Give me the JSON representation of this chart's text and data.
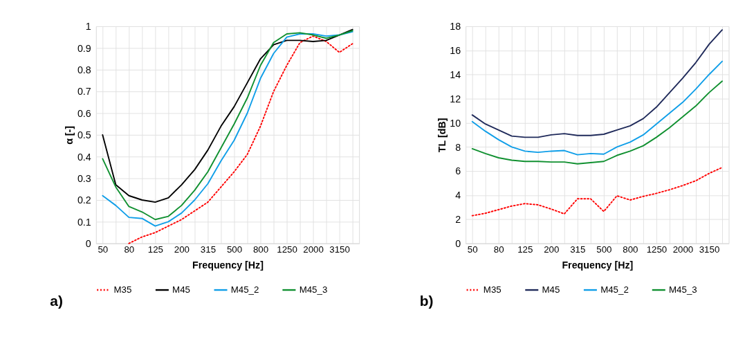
{
  "chart_data": [
    {
      "type": "line",
      "xlabel": "Frequency [Hz]",
      "ylabel": "α [-]",
      "categories": [
        "50",
        null,
        "80",
        null,
        "125",
        null,
        "200",
        null,
        "315",
        null,
        "500",
        null,
        "800",
        null,
        "1250",
        null,
        "2000",
        null,
        "3150",
        null
      ],
      "ylim": [
        0,
        1
      ],
      "yticks": [
        0,
        0.1,
        0.2,
        0.3,
        0.4,
        0.5,
        0.6,
        0.7,
        0.8,
        0.9,
        1
      ],
      "grid": true,
      "legend": "bottom",
      "annotations": [
        "a)"
      ],
      "series": [
        {
          "name": "M35",
          "color": "#ff0000",
          "line_style": "dotted",
          "values": [
            null,
            null,
            0,
            0.03,
            0.05,
            0.08,
            0.11,
            0.15,
            0.19,
            0.26,
            0.33,
            0.41,
            0.54,
            0.7,
            0.82,
            0.925,
            0.955,
            0.93,
            0.88,
            0.92
          ]
        },
        {
          "name": "M45",
          "color": "#000000",
          "line_style": "solid",
          "values": [
            0.5,
            0.27,
            0.22,
            0.2,
            0.19,
            0.21,
            0.27,
            0.34,
            0.43,
            0.54,
            0.63,
            0.74,
            0.85,
            0.915,
            0.935,
            0.935,
            0.93,
            0.935,
            0.96,
            0.985
          ]
        },
        {
          "name": "M45_2",
          "color": "#0f9ee8",
          "line_style": "solid",
          "values": [
            0.22,
            0.175,
            0.12,
            0.115,
            0.08,
            0.1,
            0.14,
            0.2,
            0.275,
            0.38,
            0.475,
            0.6,
            0.76,
            0.875,
            0.95,
            0.965,
            0.965,
            0.955,
            0.96,
            0.975
          ]
        },
        {
          "name": "M45_3",
          "color": "#109030",
          "line_style": "solid",
          "values": [
            0.39,
            0.26,
            0.17,
            0.145,
            0.11,
            0.125,
            0.175,
            0.245,
            0.33,
            0.44,
            0.55,
            0.67,
            0.82,
            0.925,
            0.965,
            0.97,
            0.96,
            0.945,
            0.96,
            0.98
          ]
        }
      ]
    },
    {
      "type": "line",
      "xlabel": "Frequency [Hz]",
      "ylabel": "TL [dB]",
      "categories": [
        "50",
        null,
        "80",
        null,
        "125",
        null,
        "200",
        null,
        "315",
        null,
        "500",
        null,
        "800",
        null,
        "1250",
        null,
        "2000",
        null,
        "3150",
        null
      ],
      "ylim": [
        0,
        18
      ],
      "yticks": [
        0,
        2,
        4,
        6,
        8,
        10,
        12,
        14,
        16,
        18
      ],
      "grid": true,
      "legend": "bottom",
      "annotations": [
        "b)"
      ],
      "series": [
        {
          "name": "M35",
          "color": "#ff0000",
          "line_style": "dotted",
          "values": [
            2.3,
            2.5,
            2.8,
            3.1,
            3.3,
            3.2,
            2.85,
            2.45,
            3.7,
            3.7,
            2.65,
            3.95,
            3.6,
            3.9,
            4.15,
            4.45,
            4.8,
            5.2,
            5.8,
            6.3
          ]
        },
        {
          "name": "M45",
          "color": "#1f2a5a",
          "line_style": "solid",
          "values": [
            10.65,
            9.9,
            9.4,
            8.9,
            8.8,
            8.8,
            9.0,
            9.1,
            8.95,
            8.95,
            9.05,
            9.4,
            9.75,
            10.35,
            11.3,
            12.5,
            13.7,
            15.0,
            16.5,
            17.7
          ]
        },
        {
          "name": "M45_2",
          "color": "#0f9ee8",
          "line_style": "solid",
          "values": [
            10.1,
            9.3,
            8.6,
            8.0,
            7.65,
            7.55,
            7.65,
            7.7,
            7.35,
            7.45,
            7.4,
            8.0,
            8.4,
            9.0,
            9.9,
            10.8,
            11.7,
            12.8,
            14.0,
            15.1
          ]
        },
        {
          "name": "M45_3",
          "color": "#109030",
          "line_style": "solid",
          "values": [
            7.85,
            7.45,
            7.1,
            6.9,
            6.8,
            6.8,
            6.75,
            6.75,
            6.6,
            6.7,
            6.8,
            7.3,
            7.65,
            8.1,
            8.8,
            9.6,
            10.5,
            11.4,
            12.5,
            13.45
          ]
        }
      ]
    }
  ]
}
